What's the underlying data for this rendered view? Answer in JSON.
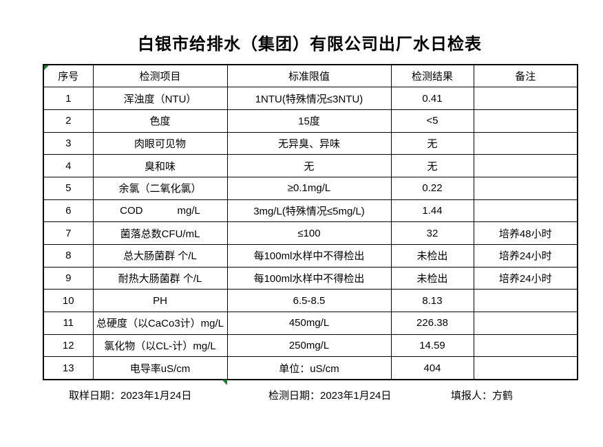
{
  "title": "白银市给排水（集团）有限公司出厂水日检表",
  "table": {
    "headers": [
      "序号",
      "检测项目",
      "标准限值",
      "检测结果",
      "备注"
    ],
    "rows": [
      {
        "no": "1",
        "item": "浑浊度（NTU）",
        "standard": "1NTU(特殊情况≤3NTU)",
        "result": "0.41",
        "remark": ""
      },
      {
        "no": "2",
        "item": "色度",
        "standard": "15度",
        "result": "<5",
        "remark": ""
      },
      {
        "no": "3",
        "item": "肉眼可见物",
        "standard": "无异臭、异味",
        "result": "无",
        "remark": ""
      },
      {
        "no": "4",
        "item": "臭和味",
        "standard": "无",
        "result": "无",
        "remark": ""
      },
      {
        "no": "5",
        "item": "余氯（二氧化氯）",
        "standard": "≥0.1mg/L",
        "result": "0.22",
        "remark": ""
      },
      {
        "no": "6",
        "item": "COD            mg/L",
        "standard": "3mg/L(特殊情况≤5mg/L)",
        "result": "1.44",
        "remark": ""
      },
      {
        "no": "7",
        "item": "菌落总数CFU/mL",
        "standard": "≤100",
        "result": "32",
        "remark": "培养48小时"
      },
      {
        "no": "8",
        "item": "总大肠菌群 个/L",
        "standard": "每100ml水样中不得检出",
        "result": "未检出",
        "remark": "培养24小时"
      },
      {
        "no": "9",
        "item": "耐热大肠菌群 个/L",
        "standard": "每100ml水样中不得检出",
        "result": "未检出",
        "remark": "培养24小时"
      },
      {
        "no": "10",
        "item": "PH",
        "standard": "6.5-8.5",
        "result": "8.13",
        "remark": ""
      },
      {
        "no": "11",
        "item": "总硬度（以CaCo3计）mg/L",
        "standard": "450mg/L",
        "result": "226.38",
        "remark": ""
      },
      {
        "no": "12",
        "item": "氯化物（以CL-计）mg/L",
        "standard": "250mg/L",
        "result": "14.59",
        "remark": ""
      },
      {
        "no": "13",
        "item": "电导率uS/cm",
        "standard": "单位：uS/cm",
        "result": "404",
        "remark": ""
      }
    ]
  },
  "footer": {
    "sampling_date": "取样日期：2023年1月24日",
    "test_date": "检测日期：2023年1月24日",
    "reporter": "填报人：方鹤"
  },
  "colors": {
    "border": "#000000",
    "background": "#ffffff",
    "excel_marker_green": "#1e7b34"
  }
}
